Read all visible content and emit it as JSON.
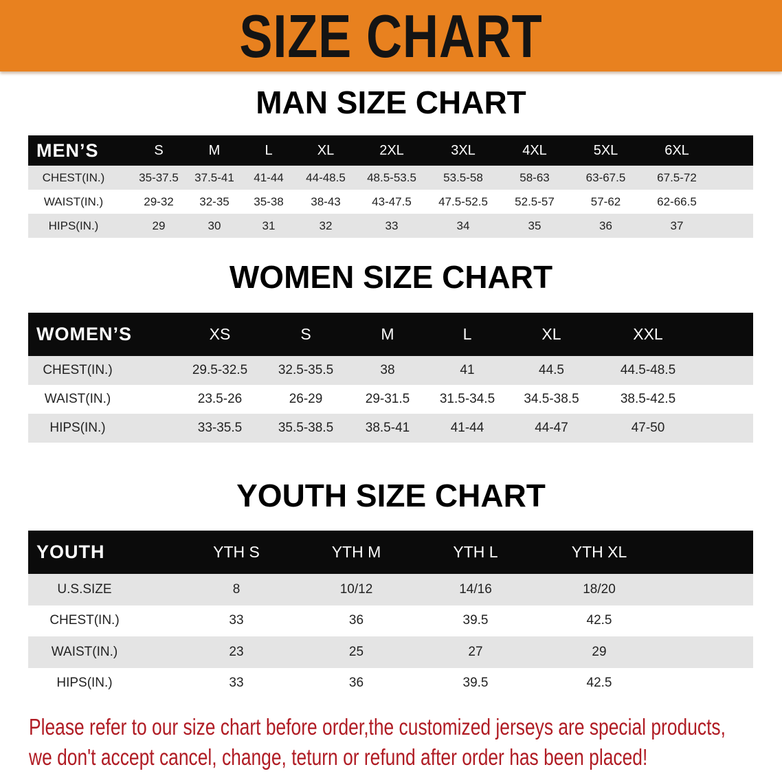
{
  "banner_title": "SIZE CHART",
  "men": {
    "title": "MAN SIZE CHART",
    "header_label": "MEN’S",
    "sizes": [
      "S",
      "M",
      "L",
      "XL",
      "2XL",
      "3XL",
      "4XL",
      "5XL",
      "6XL"
    ],
    "rows": [
      {
        "label": "CHEST(IN.)",
        "values": [
          "35-37.5",
          "37.5-41",
          "41-44",
          "44-48.5",
          "48.5-53.5",
          "53.5-58",
          "58-63",
          "63-67.5",
          "67.5-72"
        ]
      },
      {
        "label": "WAIST(IN.)",
        "values": [
          "29-32",
          "32-35",
          "35-38",
          "38-43",
          "43-47.5",
          "47.5-52.5",
          "52.5-57",
          "57-62",
          "62-66.5"
        ]
      },
      {
        "label": "HIPS(IN.)",
        "values": [
          "29",
          "30",
          "31",
          "32",
          "33",
          "34",
          "35",
          "36",
          "37"
        ]
      }
    ]
  },
  "women": {
    "title": "WOMEN SIZE CHART",
    "header_label": "WOMEN’S",
    "sizes": [
      "XS",
      "S",
      "M",
      "L",
      "XL",
      "XXL"
    ],
    "rows": [
      {
        "label": "CHEST(IN.)",
        "values": [
          "29.5-32.5",
          "32.5-35.5",
          "38",
          "41",
          "44.5",
          "44.5-48.5"
        ]
      },
      {
        "label": "WAIST(IN.)",
        "values": [
          "23.5-26",
          "26-29",
          "29-31.5",
          "31.5-34.5",
          "34.5-38.5",
          "38.5-42.5"
        ]
      },
      {
        "label": "HIPS(IN.)",
        "values": [
          "33-35.5",
          "35.5-38.5",
          "38.5-41",
          "41-44",
          "44-47",
          "47-50"
        ]
      }
    ]
  },
  "youth": {
    "title": "YOUTH SIZE CHART",
    "header_label": "YOUTH",
    "sizes": [
      "YTH S",
      "YTH M",
      "YTH L",
      "YTH XL"
    ],
    "rows": [
      {
        "label": "U.S.SIZE",
        "values": [
          "8",
          "10/12",
          "14/16",
          "18/20"
        ]
      },
      {
        "label": "CHEST(IN.)",
        "values": [
          "33",
          "36",
          "39.5",
          "42.5"
        ]
      },
      {
        "label": "WAIST(IN.)",
        "values": [
          "23",
          "25",
          "27",
          "29"
        ]
      },
      {
        "label": "HIPS(IN.)",
        "values": [
          "33",
          "36",
          "39.5",
          "42.5"
        ]
      }
    ]
  },
  "note": {
    "line1": "Please refer to our size chart before order,the customized jerseys are special products,",
    "line2": "we don't accept cancel, change, teturn or refund after order has been placed!"
  },
  "colors": {
    "banner": "#e8811f",
    "header_row": "#0b0b0b",
    "stripe": "#e4e4e4",
    "note": "#b01c24"
  }
}
